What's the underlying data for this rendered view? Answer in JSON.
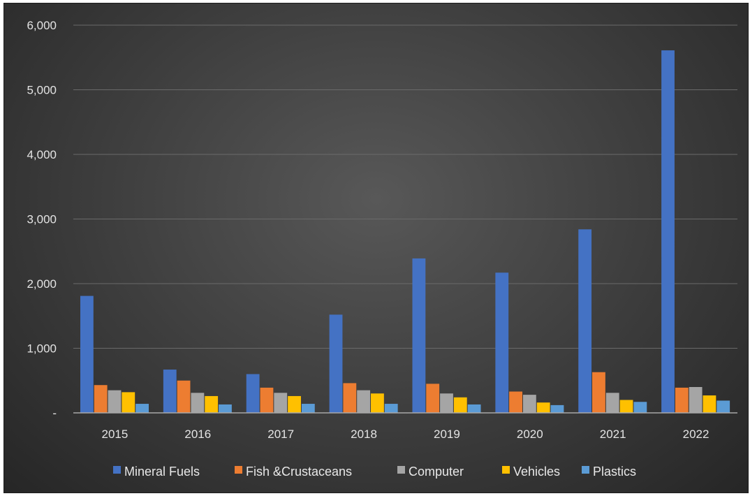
{
  "chart_data": {
    "type": "bar",
    "title": "",
    "xlabel": "",
    "ylabel": "",
    "categories": [
      "2015",
      "2016",
      "2017",
      "2018",
      "2019",
      "2020",
      "2021",
      "2022"
    ],
    "ylim": [
      0,
      6000
    ],
    "yticks": [
      0,
      1000,
      2000,
      3000,
      4000,
      5000,
      6000
    ],
    "ytick_labels": [
      "-",
      "1,000",
      "2,000",
      "3,000",
      "4,000",
      "5,000",
      "6,000"
    ],
    "grid": true,
    "legend_position": "bottom",
    "series": [
      {
        "name": "Mineral Fuels",
        "color": "#4472c4",
        "values": [
          1810,
          670,
          600,
          1520,
          2390,
          2170,
          2840,
          5610
        ]
      },
      {
        "name": "Fish &Crustaceans",
        "color": "#ed7d31",
        "values": [
          430,
          500,
          390,
          460,
          450,
          330,
          630,
          390
        ]
      },
      {
        "name": "Computer",
        "color": "#a5a5a5",
        "values": [
          350,
          310,
          310,
          350,
          300,
          280,
          310,
          400
        ]
      },
      {
        "name": "Vehicles",
        "color": "#ffc000",
        "values": [
          320,
          260,
          260,
          300,
          240,
          160,
          200,
          270
        ]
      },
      {
        "name": "Plastics",
        "color": "#5b9bd5",
        "values": [
          140,
          130,
          140,
          140,
          130,
          120,
          170,
          190
        ]
      }
    ]
  }
}
